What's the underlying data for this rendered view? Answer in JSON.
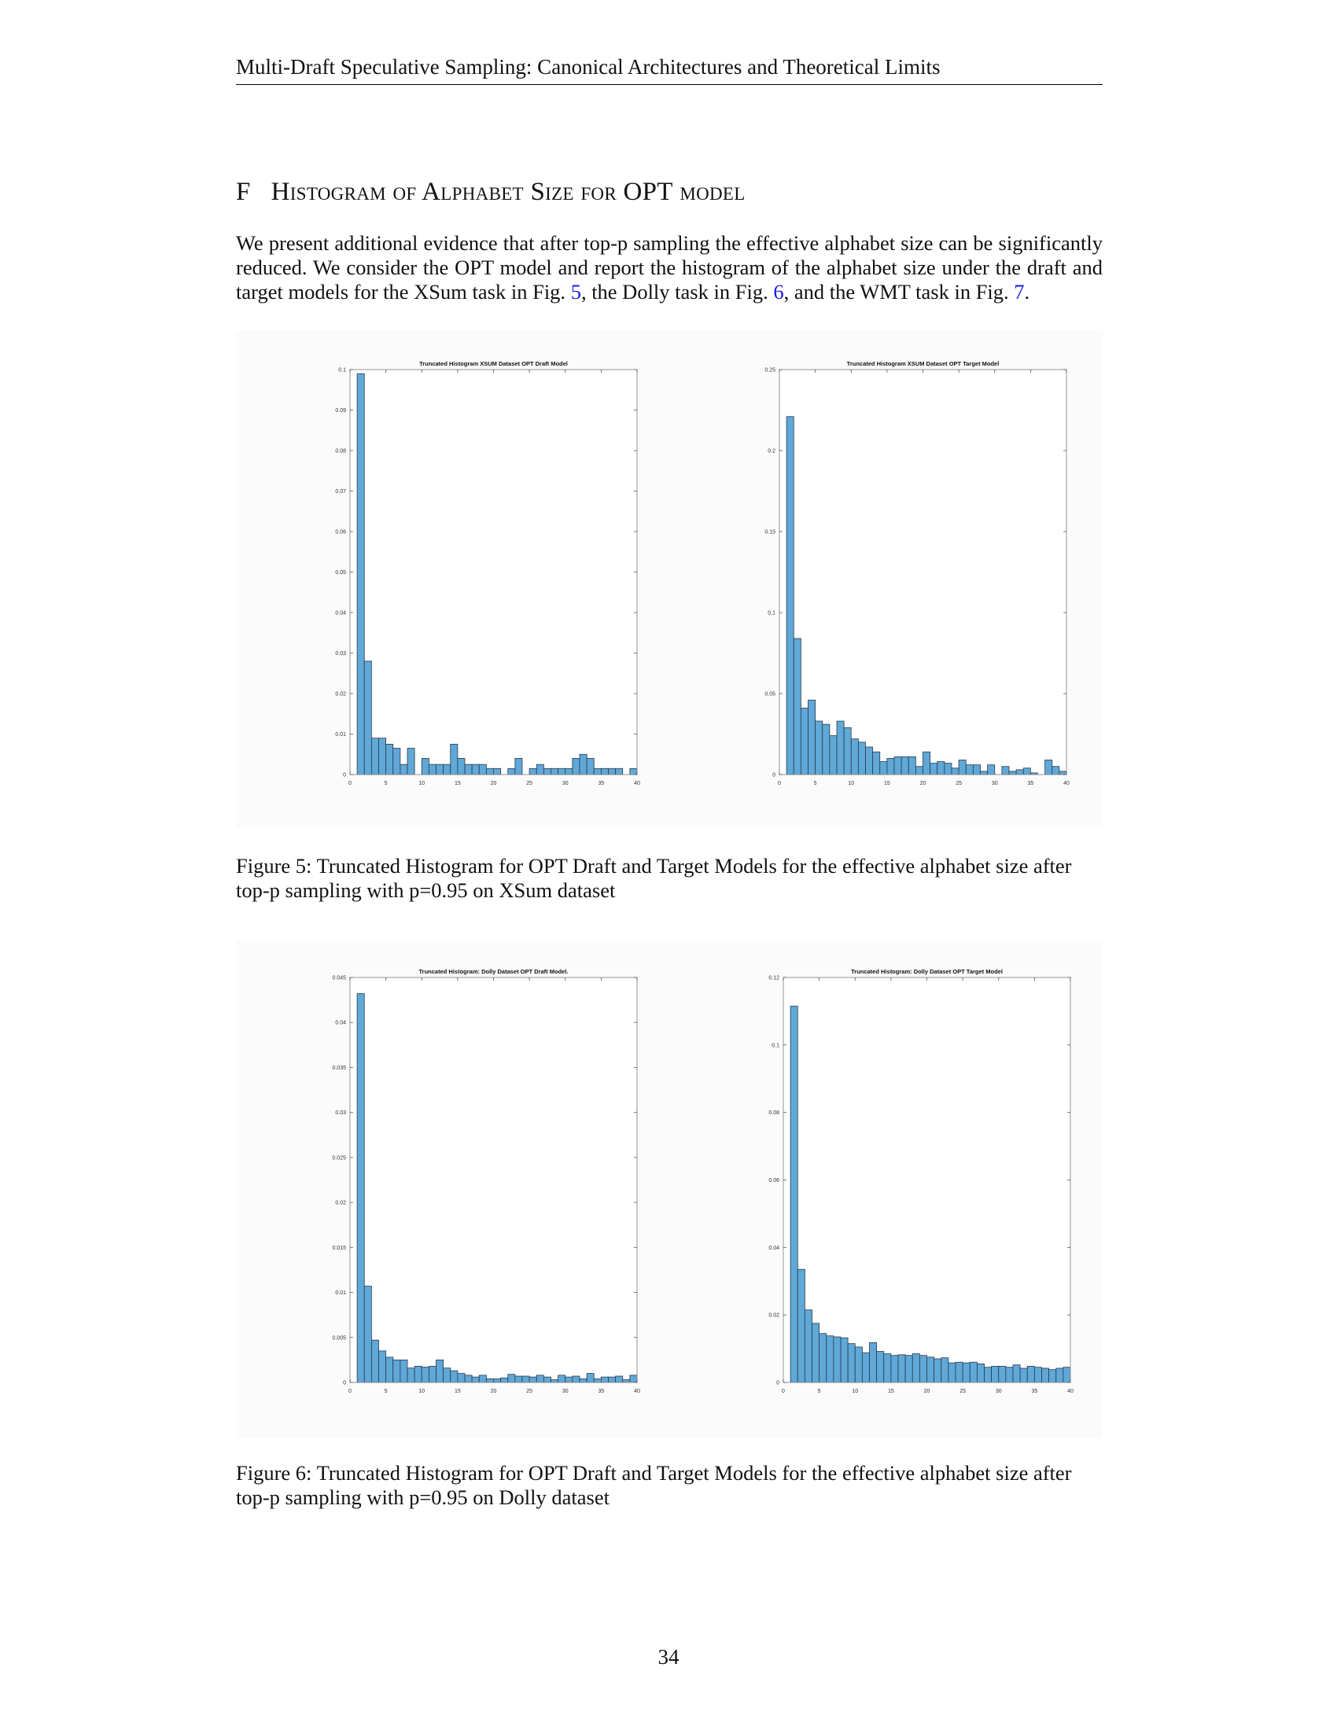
{
  "running_head": "Multi-Draft Speculative Sampling: Canonical Architectures and Theoretical Limits",
  "section": {
    "number": "F",
    "title_parts": [
      {
        "text": "Histogram of Alphabet Size for ",
        "sc": true
      },
      {
        "text": "OPT",
        "sc": false
      },
      {
        "text": " model",
        "sc": true
      }
    ]
  },
  "paragraph": {
    "part1": "We present additional evidence that after top-p sampling the effective alphabet size can be significantly reduced. We consider the OPT model and report the histogram of the alphabet size under the draft and target models for the XSum task in Fig. ",
    "ref1": "5",
    "part2": ", the Dolly task in Fig. ",
    "ref2": "6",
    "part3": ", and the WMT task in Fig. ",
    "ref3": "7",
    "part4": "."
  },
  "captions": {
    "fig5": "Figure 5: Truncated Histogram for OPT Draft and Target Models for the effective alphabet size after top-p sampling with p=0.95 on XSum dataset",
    "fig6": "Figure 6: Truncated Histogram for OPT Draft and Target Models for the effective alphabet size after top-p sampling with p=0.95 on Dolly dataset"
  },
  "page_number": "34",
  "bar_color": "#5fa8d8",
  "chart_data": [
    {
      "type": "bar",
      "title": "Truncated Histogram XSUM Dataset OPT Draft Model",
      "xlim": [
        0,
        40
      ],
      "ylim": [
        0,
        0.1
      ],
      "xticks": [
        0,
        5,
        10,
        15,
        20,
        25,
        30,
        35,
        40
      ],
      "yticks": [
        0,
        0.01,
        0.02,
        0.03,
        0.04,
        0.05,
        0.06,
        0.07,
        0.08,
        0.09,
        0.1
      ],
      "ytick_labels": [
        "0",
        "0.01",
        "0.02",
        "0.03",
        "0.04",
        "0.05",
        "0.06",
        "0.07",
        "0.08",
        "0.09",
        "0.1"
      ],
      "bin_start": 1,
      "bin_width": 1,
      "values": [
        0.099,
        0.028,
        0.009,
        0.009,
        0.0075,
        0.0065,
        0.0025,
        0.0065,
        0,
        0.004,
        0.0025,
        0.0025,
        0.0025,
        0.0075,
        0.004,
        0.0025,
        0.0025,
        0.0025,
        0.0015,
        0.0015,
        0,
        0.0015,
        0.004,
        0,
        0.0015,
        0.0025,
        0.0015,
        0.0015,
        0.0015,
        0.0015,
        0.004,
        0.005,
        0.004,
        0.0015,
        0.0015,
        0.0015,
        0.0015,
        0,
        0.0015
      ]
    },
    {
      "type": "bar",
      "title": "Truncated Histogram  XSUM Dataset OPT Target Model",
      "xlim": [
        0,
        40
      ],
      "ylim": [
        0,
        0.25
      ],
      "xticks": [
        0,
        5,
        10,
        15,
        20,
        25,
        30,
        35,
        40
      ],
      "yticks": [
        0,
        0.05,
        0.1,
        0.15,
        0.2,
        0.25
      ],
      "ytick_labels": [
        "0",
        "0.05",
        "0.1",
        "0.15",
        "0.2",
        "0.25"
      ],
      "bin_start": 1,
      "bin_width": 1,
      "values": [
        0.221,
        0.084,
        0.041,
        0.046,
        0.033,
        0.031,
        0.024,
        0.033,
        0.029,
        0.022,
        0.02,
        0.017,
        0.014,
        0.008,
        0.01,
        0.011,
        0.011,
        0.011,
        0.005,
        0.014,
        0.007,
        0.008,
        0.007,
        0.004,
        0.009,
        0.006,
        0.006,
        0.002,
        0.006,
        0,
        0.005,
        0.002,
        0.003,
        0.004,
        0.001,
        0,
        0.009,
        0.005,
        0.002
      ]
    },
    {
      "type": "bar",
      "title": "Truncated Histogram: Dolly Dataset OPT Draft Model.",
      "xlim": [
        0,
        40
      ],
      "ylim": [
        0,
        0.045
      ],
      "xticks": [
        0,
        5,
        10,
        15,
        20,
        25,
        30,
        35,
        40
      ],
      "yticks": [
        0,
        0.005,
        0.01,
        0.015,
        0.02,
        0.025,
        0.03,
        0.035,
        0.04,
        0.045
      ],
      "ytick_labels": [
        "0",
        "0.005",
        "0.01",
        "0.015",
        "0.02",
        "0.025",
        "0.03",
        "0.035",
        "0.04",
        "0.045"
      ],
      "bin_start": 1,
      "bin_width": 1,
      "values": [
        0.0432,
        0.0107,
        0.0047,
        0.0035,
        0.0028,
        0.0025,
        0.0025,
        0.0016,
        0.0018,
        0.0017,
        0.0018,
        0.0025,
        0.0016,
        0.0013,
        0.001,
        0.0008,
        0.0006,
        0.0008,
        0.0004,
        0.0004,
        0.0005,
        0.0009,
        0.0007,
        0.0007,
        0.0006,
        0.0008,
        0.0006,
        0.0003,
        0.0008,
        0.0006,
        0.0007,
        0.0004,
        0.001,
        0.0004,
        0.0006,
        0.0006,
        0.0007,
        0.0003,
        0.0008
      ]
    },
    {
      "type": "bar",
      "title": "Truncated Histogram: Dolly Dataset OPT Target Model",
      "xlim": [
        0,
        40
      ],
      "ylim": [
        0,
        0.12
      ],
      "xticks": [
        0,
        5,
        10,
        15,
        20,
        25,
        30,
        35,
        40
      ],
      "yticks": [
        0,
        0.02,
        0.04,
        0.06,
        0.08,
        0.1,
        0.12
      ],
      "ytick_labels": [
        "0",
        "0.02",
        "0.04",
        "0.06",
        "0.08",
        "0.1",
        "0.12"
      ],
      "bin_start": 1,
      "bin_width": 1,
      "values": [
        0.1115,
        0.0335,
        0.0215,
        0.0175,
        0.0145,
        0.0138,
        0.0135,
        0.0132,
        0.0115,
        0.0105,
        0.0088,
        0.0118,
        0.0092,
        0.0085,
        0.008,
        0.0082,
        0.008,
        0.0085,
        0.008,
        0.0075,
        0.007,
        0.0073,
        0.0058,
        0.006,
        0.0058,
        0.006,
        0.0055,
        0.0045,
        0.0048,
        0.0048,
        0.0045,
        0.0052,
        0.0042,
        0.0048,
        0.0045,
        0.0042,
        0.0038,
        0.0042,
        0.0045
      ]
    }
  ]
}
